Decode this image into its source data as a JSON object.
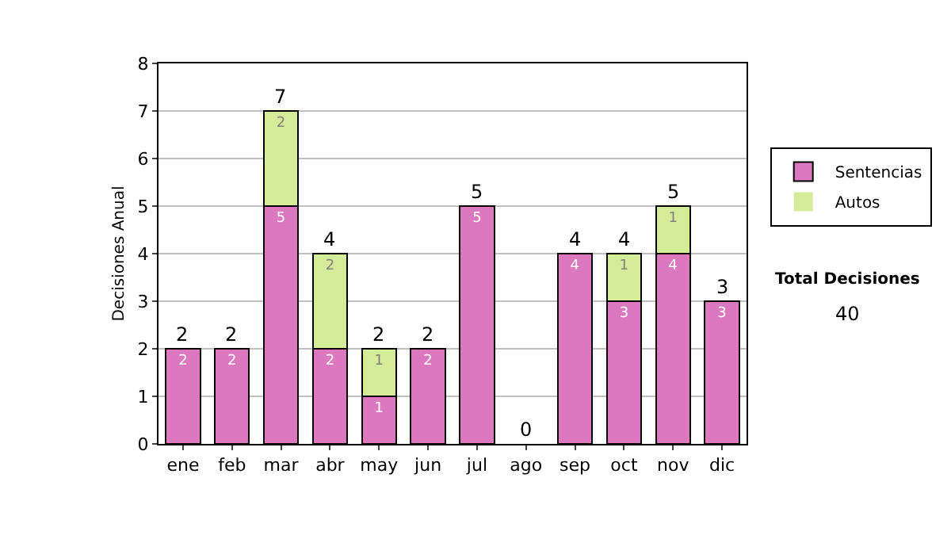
{
  "chart_data": {
    "type": "bar",
    "stacked": true,
    "ylabel": "Decisiones Anual",
    "categories": [
      "ene",
      "feb",
      "mar",
      "abr",
      "may",
      "jun",
      "jul",
      "ago",
      "sep",
      "oct",
      "nov",
      "dic"
    ],
    "series": [
      {
        "name": "Sentencias",
        "color": "#dc78c0",
        "values": [
          2,
          2,
          5,
          2,
          1,
          2,
          5,
          0,
          4,
          3,
          4,
          3
        ],
        "value_labels": [
          "2",
          "2",
          "5",
          "2",
          "1",
          "2",
          "5",
          null,
          "4",
          "3",
          "4",
          "3"
        ]
      },
      {
        "name": "Autos",
        "color": "#d4ec98",
        "values": [
          0,
          0,
          2,
          2,
          1,
          0,
          0,
          0,
          0,
          1,
          1,
          0
        ],
        "value_labels": [
          null,
          null,
          "2",
          "2",
          "1",
          null,
          null,
          null,
          null,
          "1",
          "1",
          null
        ]
      }
    ],
    "totals": [
      "2",
      "2",
      "7",
      "4",
      "2",
      "2",
      "5",
      "0",
      "4",
      "4",
      "5",
      "3"
    ],
    "ylim": [
      0,
      8
    ],
    "yticks": [
      0,
      1,
      2,
      3,
      4,
      5,
      6,
      7,
      8
    ],
    "grid": "y",
    "legend": "right",
    "annotations": [
      "Total Decisiones",
      "40"
    ]
  }
}
